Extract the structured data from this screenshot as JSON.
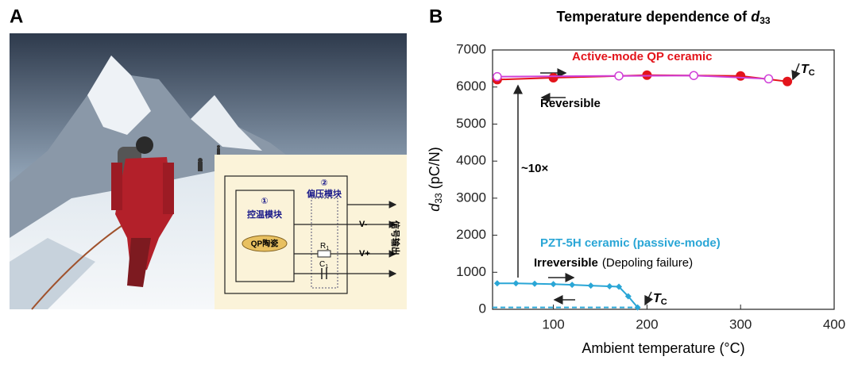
{
  "panel_a": {
    "label": "A",
    "inset": {
      "module1_num": "①",
      "module1": "控温模块",
      "ceramic": "QP陶瓷",
      "module2_num": "②",
      "module2": "偏压模块",
      "v_minus": "V-",
      "v_plus": "V+",
      "r": "R",
      "r_sub": "1",
      "c": "C",
      "c_sub": "1",
      "output": "信号输出"
    }
  },
  "chart_data": {
    "type": "line",
    "panel_label": "B",
    "title": "Temperature dependence of",
    "title_symbol": "d",
    "title_subscript": "33",
    "x_label": "Ambient temperature (°C)",
    "y_label": {
      "symbol": "d",
      "subscript": "33",
      "unit": "(pC/N)"
    },
    "xlim": [
      35,
      400
    ],
    "xticks": [
      100,
      200,
      300,
      400
    ],
    "ylim": [
      0,
      7000
    ],
    "yticks": [
      0,
      1000,
      2000,
      3000,
      4000,
      5000,
      6000,
      7000
    ],
    "series": [
      {
        "name": "Active-mode QP ceramic",
        "color": "#e3141b",
        "marker": "filled-circle",
        "x": [
          40,
          100,
          200,
          300,
          350
        ],
        "values": [
          6200,
          6250,
          6320,
          6300,
          6150
        ]
      },
      {
        "color": "#d040d8",
        "marker": "open-circle",
        "x": [
          40,
          170,
          250,
          330
        ],
        "values": [
          6280,
          6300,
          6310,
          6220
        ]
      },
      {
        "name": "PZT-5H ceramic (passive-mode)",
        "color": "#2aa6d6",
        "marker": "diamond",
        "x": [
          40,
          60,
          80,
          100,
          120,
          140,
          160,
          170,
          180,
          190
        ],
        "values": [
          700,
          700,
          690,
          680,
          660,
          640,
          620,
          610,
          350,
          50
        ]
      },
      {
        "color": "#2aa6d6",
        "marker": "none",
        "dashed": true,
        "x": [
          35,
          190
        ],
        "values": [
          50,
          50
        ]
      }
    ],
    "annotations": {
      "reversible": "Reversible",
      "ratio": "~10×",
      "irreversible": "Irreversible",
      "depoling": "(Depoling failure)",
      "tc": "T",
      "tc_sub": "C"
    }
  }
}
